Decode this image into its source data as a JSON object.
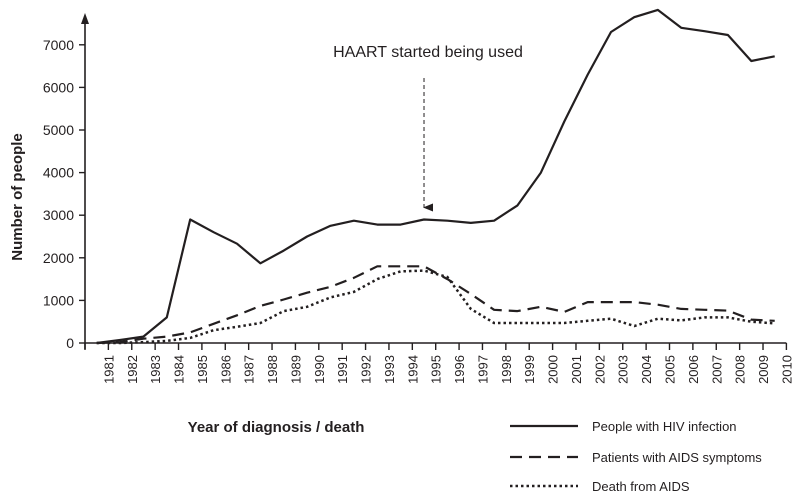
{
  "chart_data": {
    "type": "line",
    "title": "",
    "xlabel": "Year of diagnosis / death",
    "ylabel": "Number of people",
    "ylim": [
      0,
      7000
    ],
    "yticks": [
      "0",
      "1000",
      "2000",
      "3000",
      "4000",
      "5000",
      "6000",
      "7000"
    ],
    "grid": false,
    "legend_position": "bottom-right",
    "annotation": {
      "text": "HAART started being used",
      "year": "1995"
    },
    "categories": [
      "1981",
      "1982",
      "1983",
      "1984",
      "1985",
      "1986",
      "1987",
      "1988",
      "1989",
      "1990",
      "1991",
      "1992",
      "1993",
      "1994",
      "1995",
      "1996",
      "1997",
      "1998",
      "1999",
      "2000",
      "2001",
      "2002",
      "2003",
      "2004",
      "2005",
      "2006",
      "2007",
      "2008",
      "2009",
      "2010"
    ],
    "series": [
      {
        "name": "People with HIV infection",
        "style": "solid",
        "values": [
          0,
          70,
          150,
          600,
          2900,
          2600,
          2330,
          1870,
          2170,
          2500,
          2750,
          2870,
          2780,
          2780,
          2900,
          2870,
          2820,
          2870,
          3230,
          4000,
          5200,
          6300,
          7300,
          7650,
          7820,
          7400,
          7320,
          7230,
          6620,
          6730
        ]
      },
      {
        "name": "Patients with AIDS symptoms",
        "style": "dashed",
        "values": [
          0,
          20,
          100,
          150,
          250,
          450,
          650,
          870,
          1020,
          1180,
          1320,
          1530,
          1800,
          1800,
          1800,
          1500,
          1150,
          780,
          750,
          850,
          730,
          960,
          960,
          960,
          900,
          800,
          780,
          760,
          550,
          520
        ]
      },
      {
        "name": "Death from AIDS",
        "style": "dotted",
        "values": [
          0,
          0,
          20,
          50,
          120,
          300,
          380,
          470,
          750,
          850,
          1070,
          1200,
          1500,
          1680,
          1700,
          1550,
          800,
          470,
          470,
          470,
          470,
          520,
          570,
          400,
          570,
          530,
          600,
          600,
          500,
          460
        ]
      }
    ]
  }
}
